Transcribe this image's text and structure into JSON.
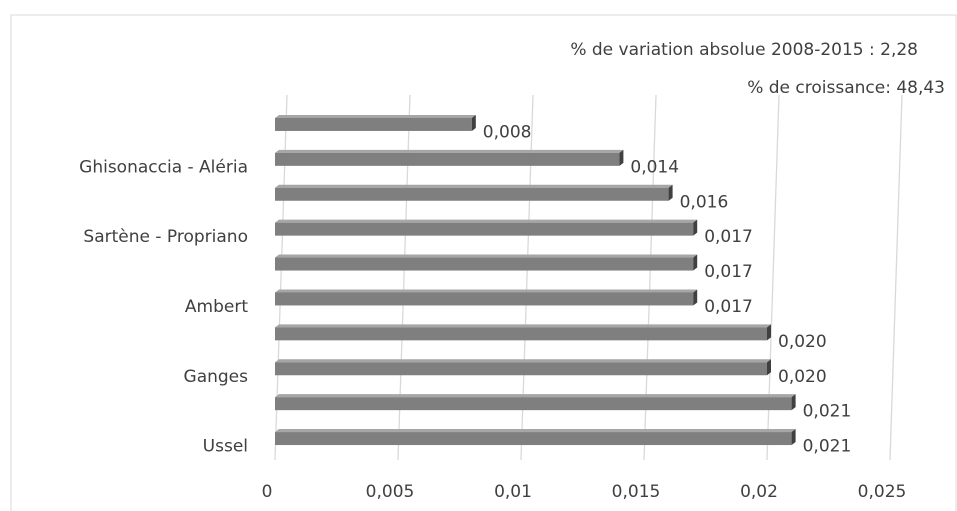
{
  "chart_data": {
    "type": "bar",
    "orientation": "horizontal",
    "annotations": [
      "% de variation absolue 2008-2015 : 2,28",
      "% de croissance: 48,43"
    ],
    "categories": [
      null,
      "Ghisonaccia - Aléria",
      null,
      "Sartène - Propriano",
      null,
      "Ambert",
      null,
      "Ganges",
      null,
      "Ussel"
    ],
    "values": [
      0.008,
      0.014,
      0.016,
      0.017,
      0.017,
      0.017,
      0.02,
      0.02,
      0.021,
      0.021
    ],
    "value_labels": [
      "0,008",
      "0,014",
      "0,016",
      "0,017",
      "0,017",
      "0,017",
      "0,020",
      "0,020",
      "0,021",
      "0,021"
    ],
    "color": "#7f7f7f",
    "xlim": [
      0,
      0.025
    ],
    "xticks": [
      0,
      {
        "value": 0.005,
        "label": "0,005"
      },
      {
        "value": 0.01,
        "label": "0,01"
      },
      {
        "value": 0.015,
        "label": "0,015"
      },
      {
        "value": 0.02,
        "label": "0,02"
      },
      {
        "value": 0.025,
        "label": "0,025"
      }
    ],
    "grid": true
  }
}
